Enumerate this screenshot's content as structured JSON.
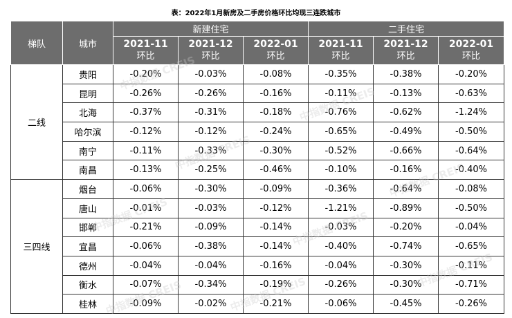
{
  "title": "表：2022年1月新房及二手房价格环比均现三连跌城市",
  "watermark": "中指数据 CREIS",
  "header": {
    "tier": "梯队",
    "city": "城市",
    "groups": [
      "新建住宅",
      "二手住宅"
    ],
    "columns": [
      {
        "period": "2021-11",
        "sub": "环比"
      },
      {
        "period": "2021-12",
        "sub": "环比"
      },
      {
        "period": "2022-01",
        "sub": "环比"
      },
      {
        "period": "2021-11",
        "sub": "环比"
      },
      {
        "period": "2021-12",
        "sub": "环比"
      },
      {
        "period": "2022-01",
        "sub": "环比"
      }
    ]
  },
  "tiers": [
    {
      "name": "二线",
      "rows": [
        {
          "city": "贵阳",
          "values": [
            "-0.20%",
            "-0.03%",
            "-0.08%",
            "-0.35%",
            "-0.38%",
            "-0.20%"
          ]
        },
        {
          "city": "昆明",
          "values": [
            "-0.26%",
            "-0.26%",
            "-0.16%",
            "-0.11%",
            "-0.13%",
            "-0.63%"
          ]
        },
        {
          "city": "北海",
          "values": [
            "-0.37%",
            "-0.31%",
            "-0.18%",
            "-0.76%",
            "-0.62%",
            "-1.24%"
          ]
        },
        {
          "city": "哈尔滨",
          "values": [
            "-0.12%",
            "-0.12%",
            "-0.24%",
            "-0.65%",
            "-0.49%",
            "-0.50%"
          ]
        },
        {
          "city": "南宁",
          "values": [
            "-0.11%",
            "-0.33%",
            "-0.30%",
            "-0.52%",
            "-0.66%",
            "-0.64%"
          ]
        },
        {
          "city": "南昌",
          "values": [
            "-0.13%",
            "-0.25%",
            "-0.46%",
            "-0.10%",
            "-0.16%",
            "-0.40%"
          ]
        }
      ]
    },
    {
      "name": "三四线",
      "rows": [
        {
          "city": "烟台",
          "values": [
            "-0.06%",
            "-0.30%",
            "-0.09%",
            "-0.36%",
            "-0.64%",
            "-0.08%"
          ]
        },
        {
          "city": "唐山",
          "values": [
            "-0.01%",
            "-0.03%",
            "-0.12%",
            "-1.21%",
            "-0.89%",
            "-0.50%"
          ]
        },
        {
          "city": "邯郸",
          "values": [
            "-0.21%",
            "-0.09%",
            "-0.14%",
            "-0.03%",
            "-0.20%",
            "-0.04%"
          ]
        },
        {
          "city": "宜昌",
          "values": [
            "-0.06%",
            "-0.38%",
            "-0.14%",
            "-0.40%",
            "-0.74%",
            "-0.65%"
          ]
        },
        {
          "city": "德州",
          "values": [
            "-0.04%",
            "-0.04%",
            "-0.16%",
            "-0.04%",
            "-0.30%",
            "-0.11%"
          ]
        },
        {
          "city": "衡水",
          "values": [
            "-0.07%",
            "-0.34%",
            "-0.19%",
            "-0.26%",
            "-0.30%",
            "-0.71%"
          ]
        },
        {
          "city": "桂林",
          "values": [
            "-0.09%",
            "-0.02%",
            "-0.21%",
            "-0.06%",
            "-0.45%",
            "-0.26%"
          ]
        }
      ]
    }
  ]
}
